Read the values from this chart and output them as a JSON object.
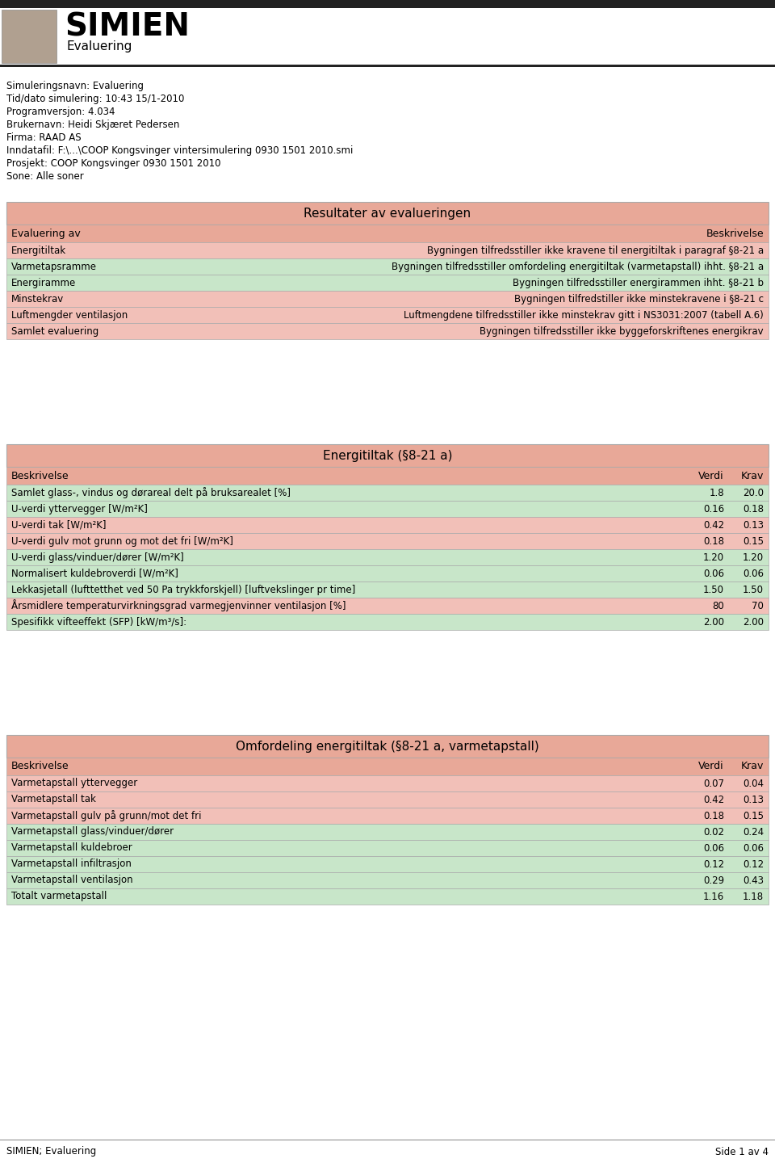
{
  "title": "SIMIEN",
  "subtitle": "Evaluering",
  "header_info": [
    "Simuleringsnavn: Evaluering",
    "Tid/dato simulering: 10:43 15/1-2010",
    "Programversjon: 4.034",
    "Brukernavn: Heidi Skjæret Pedersen",
    "Firma: RAAD AS",
    "Inndatafil: F:\\...\\COOP Kongsvinger vintersimulering 0930 1501 2010.smi",
    "Prosjekt: COOP Kongsvinger 0930 1501 2010",
    "Sone: Alle soner"
  ],
  "table1_title": "Resultater av evalueringen",
  "table1_header": [
    "Evaluering av",
    "Beskrivelse"
  ],
  "table1_rows": [
    [
      "Energitiltak",
      "Bygningen tilfredsstiller ikke kravene til energitiltak i paragraf §8-21 a"
    ],
    [
      "Varmetapsramme",
      "Bygningen tilfredsstiller omfordeling energitiltak (varmetapstall) ihht. §8-21 a"
    ],
    [
      "Energiramme",
      "Bygningen tilfredsstiller energirammen ihht. §8-21 b"
    ],
    [
      "Minstekrav",
      "Bygningen tilfredstiller ikke minstekravene i §8-21 c"
    ],
    [
      "Luftmengder ventilasjon",
      "Luftmengdene tilfredsstiller ikke minstekrav gitt i NS3031:2007 (tabell A.6)"
    ],
    [
      "Samlet evaluering",
      "Bygningen tilfredsstiller ikke byggeforskriftenes energikrav"
    ]
  ],
  "table1_row_colors": [
    "#f2c0b8",
    "#c8e6c9",
    "#c8e6c9",
    "#f2c0b8",
    "#f2c0b8",
    "#f2c0b8"
  ],
  "table2_title": "Energitiltak (§8-21 a)",
  "table2_header": [
    "Beskrivelse",
    "Verdi",
    "Krav"
  ],
  "table2_rows": [
    [
      "Samlet glass-, vindus og dørareal delt på bruksarealet [%]",
      "1.8",
      "20.0"
    ],
    [
      "U-verdi yttervegger [W/m²K]",
      "0.16",
      "0.18"
    ],
    [
      "U-verdi tak [W/m²K]",
      "0.42",
      "0.13"
    ],
    [
      "U-verdi gulv mot grunn og mot det fri [W/m²K]",
      "0.18",
      "0.15"
    ],
    [
      "U-verdi glass/vinduer/dører [W/m²K]",
      "1.20",
      "1.20"
    ],
    [
      "Normalisert kuldebroverdi [W/m²K]",
      "0.06",
      "0.06"
    ],
    [
      "Lekkasjetall (lufttetthet ved 50 Pa trykkforskjell) [luftvekslinger pr time]",
      "1.50",
      "1.50"
    ],
    [
      "Årsmidlere temperaturvirkningsgrad varmegjenvinner ventilasjon [%]",
      "80",
      "70"
    ],
    [
      "Spesifikk vifteeffekt (SFP) [kW/m³/s]:",
      "2.00",
      "2.00"
    ]
  ],
  "table2_row_colors": [
    "#c8e6c9",
    "#c8e6c9",
    "#f2c0b8",
    "#f2c0b8",
    "#c8e6c9",
    "#c8e6c9",
    "#c8e6c9",
    "#f2c0b8",
    "#c8e6c9"
  ],
  "table3_title": "Omfordeling energitiltak (§8-21 a, varmetapstall)",
  "table3_header": [
    "Beskrivelse",
    "Verdi",
    "Krav"
  ],
  "table3_rows": [
    [
      "Varmetapstall yttervegger",
      "0.07",
      "0.04"
    ],
    [
      "Varmetapstall tak",
      "0.42",
      "0.13"
    ],
    [
      "Varmetapstall gulv på grunn/mot det fri",
      "0.18",
      "0.15"
    ],
    [
      "Varmetapstall glass/vinduer/dører",
      "0.02",
      "0.24"
    ],
    [
      "Varmetapstall kuldebroer",
      "0.06",
      "0.06"
    ],
    [
      "Varmetapstall infiltrasjon",
      "0.12",
      "0.12"
    ],
    [
      "Varmetapstall ventilasjon",
      "0.29",
      "0.43"
    ],
    [
      "Totalt varmetapstall",
      "1.16",
      "1.18"
    ]
  ],
  "table3_row_colors": [
    "#f2c0b8",
    "#f2c0b8",
    "#f2c0b8",
    "#c8e6c9",
    "#c8e6c9",
    "#c8e6c9",
    "#c8e6c9",
    "#c8e6c9"
  ],
  "footer_left": "SIMIEN; Evaluering",
  "footer_right": "Side 1 av 4",
  "header_bg": "#f2c0b8",
  "subheader_bg": "#e8b0a8",
  "table_header_bg": "#d4967a",
  "green_row": "#c8e6c9",
  "red_row": "#f2c0b8",
  "border_color": "#888888"
}
